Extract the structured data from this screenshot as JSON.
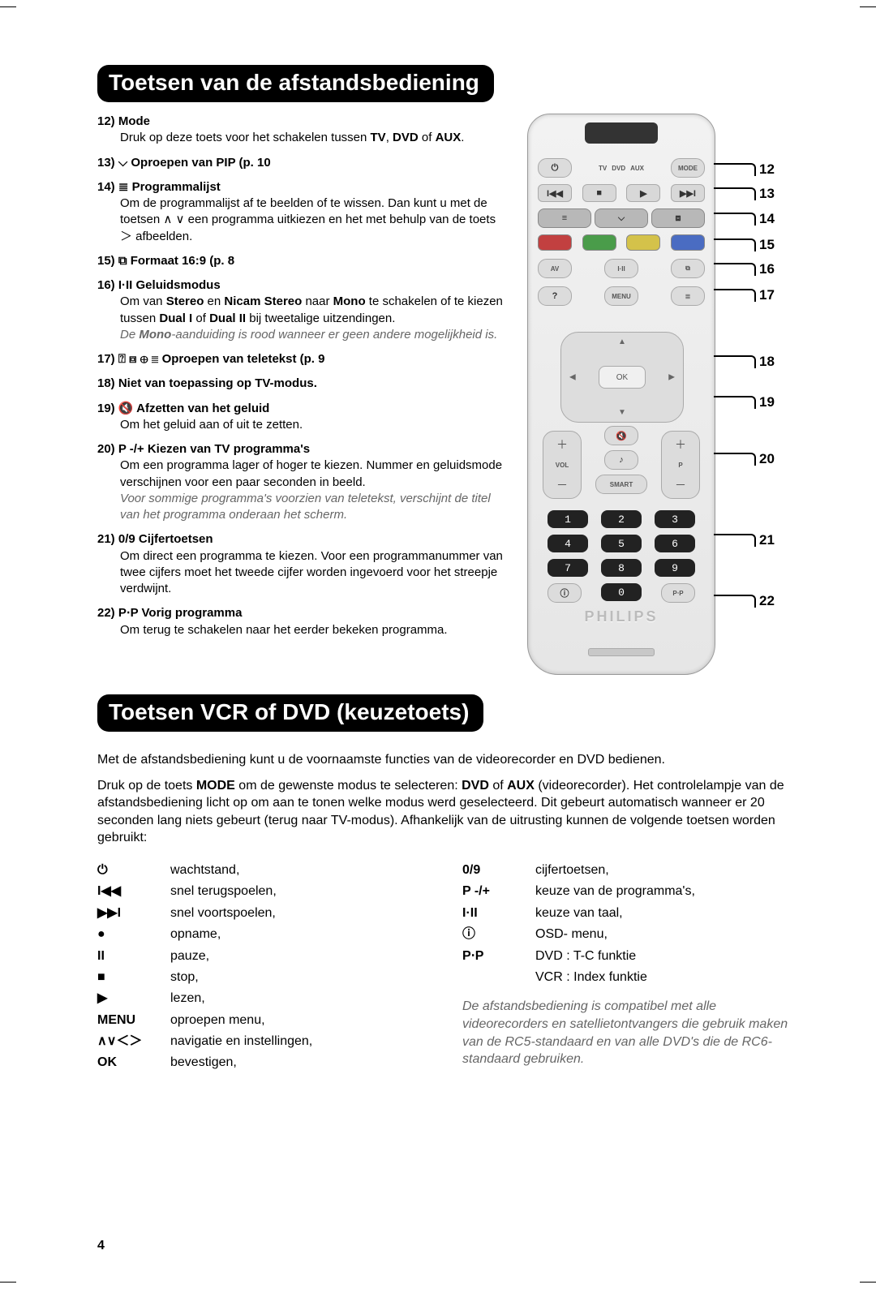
{
  "section1_title": "Toetsen van de afstandsbediening",
  "section2_title": "Toetsen VCR of DVD (keuzetoets)",
  "items": {
    "i12": {
      "num": "12)",
      "title": "Mode",
      "body_a": "Druk op deze toets voor het schakelen tussen ",
      "bold_a": "TV",
      "comma": ", ",
      "bold_b": "DVD",
      "mid": " of ",
      "bold_c": "AUX",
      "end": "."
    },
    "i13": {
      "head": "13)  ⌵  Oproepen van PIP (p. 10"
    },
    "i14": {
      "head": "14)  ≣  Programmalijst",
      "body": "Om de programmalijst af te beelden of te wissen. Dan kunt u met de toetsen ∧ ∨ een programma uitkiezen en het met behulp van de toets ＞ afbeelden."
    },
    "i15": {
      "head": "15)  ⧉  Formaat 16:9 (p. 8"
    },
    "i16": {
      "head": "16)  I·II  Geluidsmodus",
      "body_a": "Om van ",
      "bold_a": "Stereo",
      "mid_a": " en ",
      "bold_b": "Nicam Stereo",
      "mid_b": " naar ",
      "bold_c": "Mono",
      "body_b": " te schakelen of te kiezen tussen ",
      "bold_d": "Dual I",
      "mid_c": " of ",
      "bold_e": "Dual II",
      "body_c": " bij tweetalige uitzendingen.",
      "note_a": "De ",
      "note_bold": "Mono",
      "note_b": "-aanduiding is rood wanneer er geen andere mogelijkheid is."
    },
    "i17": {
      "head": "17)  ⍰ ⧈ ⊕ ≣  Oproepen van teletekst (p. 9"
    },
    "i18": {
      "head": "18)  Niet van toepassing op TV-modus."
    },
    "i19": {
      "head": "19)  🔇  Afzetten van het geluid",
      "body": "Om het geluid aan of uit te zetten."
    },
    "i20": {
      "head": "20)  P -/+  Kiezen van TV programma's",
      "body": "Om een programma lager of hoger te kiezen. Nummer en geluidsmode verschijnen voor een paar seconden in beeld.",
      "note": "Voor sommige programma's voorzien van teletekst, verschijnt de titel van het programma onderaan het scherm."
    },
    "i21": {
      "head": "21)  0/9 Cijfertoetsen",
      "body": "Om direct een programma te kiezen. Voor een programmanummer van twee cijfers moet het tweede cijfer worden ingevoerd voor het streepje verdwijnt."
    },
    "i22": {
      "head": "22)  P⋅P  Vorig programma",
      "body": "Om terug te schakelen naar het eerder bekeken programma."
    }
  },
  "callouts": [
    "12",
    "13",
    "14",
    "15",
    "16",
    "17",
    "18",
    "19",
    "20",
    "21",
    "22"
  ],
  "remote": {
    "labels": {
      "tv": "TV",
      "dvd": "DVD",
      "aux": "AUX",
      "mode": "MODE",
      "av": "AV",
      "iii": "I·II",
      "fmt": "⧉",
      "menu": "MENU",
      "teletext": "≣",
      "ok": "OK",
      "vol": "VOL",
      "p": "P",
      "smart": "SMART",
      "mute": "🔇",
      "music": "♪",
      "pip": "⌵",
      "osd": "ⓘ",
      "pp": "P⋅P"
    },
    "colors": {
      "red": "#c24040",
      "green": "#4a9c4a",
      "yellow": "#d4c24a",
      "blue": "#4a6cc2"
    },
    "digits": [
      "1",
      "2",
      "3",
      "4",
      "5",
      "6",
      "7",
      "8",
      "9",
      "0"
    ],
    "brand": "PHILIPS"
  },
  "vcr": {
    "p1": "Met de afstandsbediening kunt u de voornaamste functies van de videorecorder en DVD bedienen.",
    "p2_a": "Druk op de toets ",
    "p2_bold1": "MODE",
    "p2_b": " om de gewenste modus te selecteren: ",
    "p2_bold2": "DVD",
    "p2_c": " of ",
    "p2_bold3": "AUX",
    "p2_d": " (videorecorder). Het controlelampje van de afstandsbediening licht op om aan te tonen welke modus werd geselecteerd. Dit gebeurt automatisch wanneer er 20 seconden lang niets gebeurt (terug naar TV-modus). Afhankelijk van de uitrusting kunnen de volgende toetsen worden gebruikt:",
    "left": [
      {
        "s": "⏻",
        "t": "wachtstand,"
      },
      {
        "s": "I◀◀",
        "t": "snel terugspoelen,"
      },
      {
        "s": "▶▶I",
        "t": "snel voortspoelen,"
      },
      {
        "s": "●",
        "t": "opname,"
      },
      {
        "s": "II",
        "t": "pauze,"
      },
      {
        "s": "■",
        "t": "stop,"
      },
      {
        "s": "▶",
        "t": "lezen,"
      },
      {
        "s": "MENU",
        "t": "oproepen menu,"
      },
      {
        "s": "∧∨＜＞",
        "t": "navigatie en instellingen,"
      },
      {
        "s": "OK",
        "t": "bevestigen,"
      }
    ],
    "right": [
      {
        "s": "0/9",
        "t": "cijfertoetsen,"
      },
      {
        "s": "P -/+",
        "t": "keuze van de programma's,"
      },
      {
        "s": "I·II",
        "t": "keuze van taal,"
      },
      {
        "s": "ⓘ",
        "t": "OSD- menu,"
      },
      {
        "s": "P⋅P",
        "t": "DVD : T-C funktie"
      },
      {
        "s": "",
        "t": "VCR : Index funktie"
      }
    ],
    "note": "De afstandsbediening is compatibel met alle videorecorders en satellietontvangers die gebruik maken van de RC5-standaard en van alle DVD's die de RC6-standaard gebruiken."
  },
  "page_number": "4"
}
